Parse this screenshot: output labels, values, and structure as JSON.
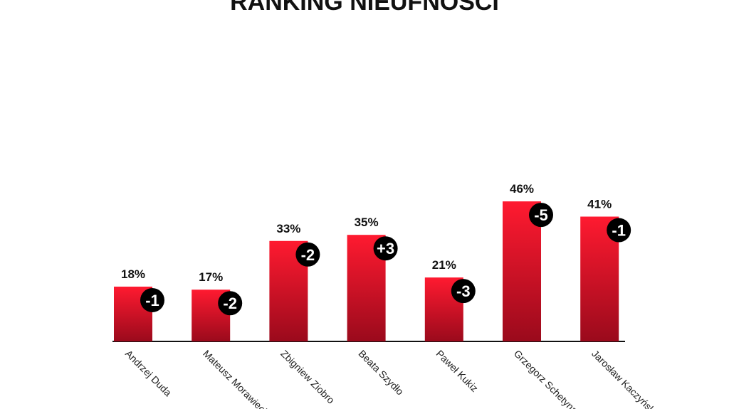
{
  "chart_data": {
    "type": "bar",
    "title": "RANKING NIEUFNOŚCI",
    "categories": [
      "Andrzej Duda",
      "Mateusz Morawiecki",
      "Zbigniew Ziobro",
      "Beata Szydło",
      "Paweł Kukiz",
      "Grzegorz Schetyna",
      "Jarosław Kaczyński"
    ],
    "values": [
      18,
      17,
      33,
      35,
      21,
      46,
      41
    ],
    "value_labels": [
      "18%",
      "17%",
      "33%",
      "35%",
      "21%",
      "46%",
      "41%"
    ],
    "color": "#e8142a",
    "changes": {
      "values": [
        -1,
        -2,
        -2,
        3,
        -3,
        -5,
        -1
      ],
      "value_labels": [
        "-1",
        "-2",
        "-2",
        "+3",
        "-3",
        "-5",
        "-1"
      ],
      "color": "#000000"
    }
  }
}
